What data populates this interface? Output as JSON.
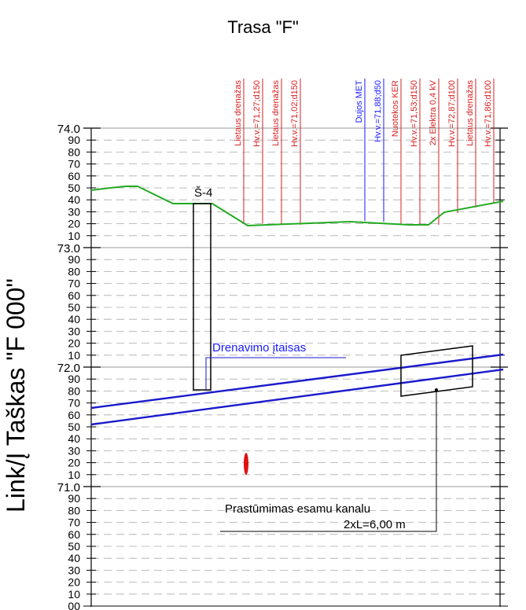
{
  "title": "Trasa \"F\"",
  "side_label": "Link/Į Taškas \"F 000\"",
  "axis": {
    "major_labels": [
      "74.0",
      "73.0",
      "72.0",
      "71.0"
    ],
    "minor_labels": [
      "90",
      "80",
      "70",
      "60",
      "50",
      "40",
      "30",
      "20",
      "10"
    ],
    "bottom_label": "00"
  },
  "utility_labels": [
    {
      "text": "Lietaus drenažas",
      "color": "#d62020"
    },
    {
      "text": "Hv.v.=71,27;d150",
      "color": "#d62020"
    },
    {
      "text": "Lietaus drenažas",
      "color": "#d62020"
    },
    {
      "text": "Hv.v.=71,02;d150",
      "color": "#d62020"
    },
    {
      "text": "Dujos MET",
      "color": "#1a1aff"
    },
    {
      "text": "Hv.v.=71,88;d50",
      "color": "#1a1aff"
    },
    {
      "text": "Nuotekos KER",
      "color": "#d62020"
    },
    {
      "text": "Hv.v.=71,53;d150",
      "color": "#d62020"
    },
    {
      "text": "2x Elektra 0,4 kV",
      "color": "#d62020"
    },
    {
      "text": "Hv.v.=72,87;d100",
      "color": "#d62020"
    },
    {
      "text": "Lietaus drenažas",
      "color": "#d62020"
    },
    {
      "text": "Hv.v.=71,86;d100",
      "color": "#d62020"
    }
  ],
  "annotations": {
    "well": "Š-4",
    "drainage": "Drenavimo įtaisas",
    "pushing_line1": "Prastūmimas esamu kanalu",
    "pushing_line2": "2xL=6,00 m"
  },
  "colors": {
    "ground": "#22aa22",
    "pipe": "#1a1acc",
    "red_mark": "#e01010"
  }
}
